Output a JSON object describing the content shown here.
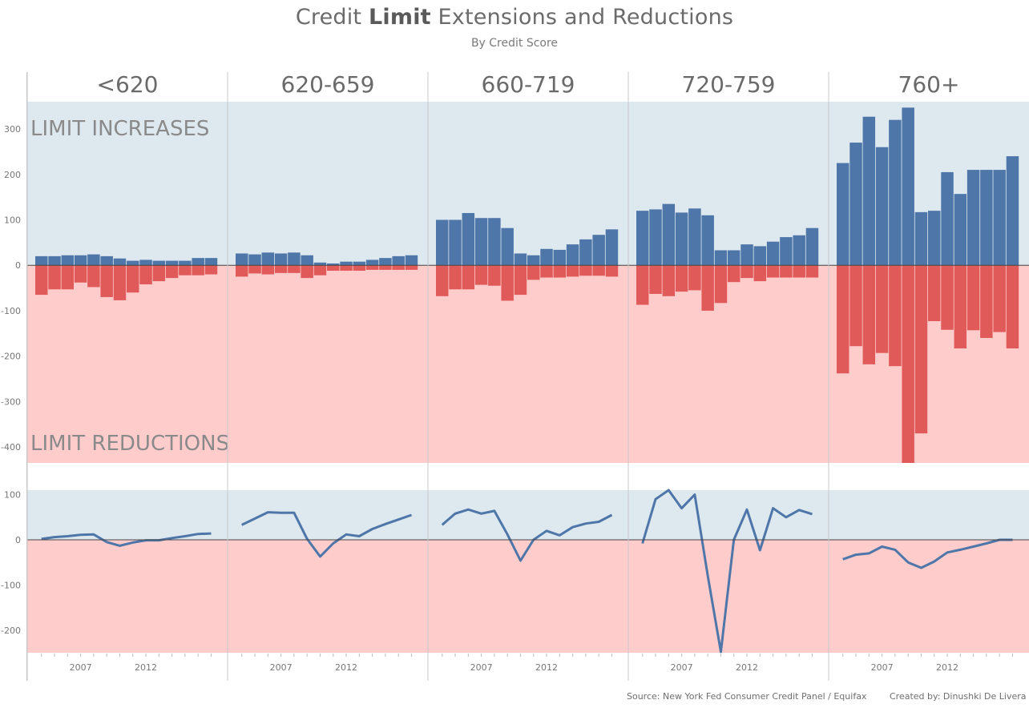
{
  "title": {
    "pre": "Credit ",
    "bold": "Limit",
    "post": " Extensions and Reductions"
  },
  "subtitle": "By Credit Score",
  "footer": {
    "source": "Source: New York Fed Consumer Credit Panel / Equifax",
    "credit": "Created by: Dinushki De Livera"
  },
  "colors": {
    "increase_bg": "#dde8ef",
    "reduction_bg": "#ffcccc",
    "increase_bar": "#4e76a8",
    "reduction_bar": "#e05a5a",
    "net_line": "#4e76a8",
    "text": "#777777"
  },
  "chart_data": [
    {
      "type": "bar",
      "title": "",
      "facet_header": [
        "<620",
        "620-659",
        "660-719",
        "720-759",
        "760+"
      ],
      "zone_labels": {
        "positive": "LIMIT INCREASES",
        "negative": "LIMIT REDUCTIONS"
      },
      "categories": [
        2004,
        2005,
        2006,
        2007,
        2008,
        2009,
        2010,
        2011,
        2012,
        2013,
        2014,
        2015,
        2016,
        2017
      ],
      "x_tick_labels": [
        "2007",
        "2012"
      ],
      "ylim": [
        -435,
        360
      ],
      "y_ticks": [
        300,
        200,
        100,
        0,
        -100,
        -200,
        -300,
        -400
      ],
      "series": [
        {
          "name": "LIMIT INCREASES",
          "facet": "<620",
          "values": [
            20,
            20,
            22,
            22,
            24,
            20,
            15,
            10,
            12,
            10,
            10,
            10,
            16,
            16
          ]
        },
        {
          "name": "LIMIT REDUCTIONS",
          "facet": "<620",
          "values": [
            -65,
            -53,
            -53,
            -38,
            -48,
            -70,
            -77,
            -60,
            -42,
            -35,
            -28,
            -22,
            -22,
            -20
          ]
        },
        {
          "name": "LIMIT INCREASES",
          "facet": "620-659",
          "values": [
            26,
            24,
            28,
            26,
            28,
            22,
            6,
            4,
            8,
            8,
            12,
            16,
            20,
            22
          ]
        },
        {
          "name": "LIMIT REDUCTIONS",
          "facet": "620-659",
          "values": [
            -25,
            -18,
            -20,
            -17,
            -17,
            -28,
            -22,
            -12,
            -12,
            -12,
            -10,
            -10,
            -10,
            -10
          ]
        },
        {
          "name": "LIMIT INCREASES",
          "facet": "660-719",
          "values": [
            100,
            100,
            115,
            104,
            104,
            82,
            26,
            22,
            36,
            34,
            46,
            57,
            67,
            79
          ]
        },
        {
          "name": "LIMIT REDUCTIONS",
          "facet": "660-719",
          "values": [
            -68,
            -53,
            -53,
            -43,
            -45,
            -78,
            -65,
            -32,
            -27,
            -27,
            -25,
            -23,
            -23,
            -25
          ]
        },
        {
          "name": "LIMIT INCREASES",
          "facet": "720-759",
          "values": [
            120,
            123,
            135,
            116,
            125,
            110,
            33,
            33,
            46,
            42,
            52,
            62,
            66,
            82
          ]
        },
        {
          "name": "LIMIT REDUCTIONS",
          "facet": "720-759",
          "values": [
            -87,
            -63,
            -68,
            -58,
            -55,
            -100,
            -83,
            -37,
            -28,
            -35,
            -27,
            -27,
            -27,
            -27
          ]
        },
        {
          "name": "LIMIT INCREASES",
          "facet": "760+",
          "values": [
            225,
            270,
            327,
            260,
            320,
            347,
            117,
            120,
            205,
            157,
            210,
            210,
            210,
            240
          ]
        },
        {
          "name": "LIMIT REDUCTIONS",
          "facet": "760+",
          "values": [
            -238,
            -178,
            -218,
            -193,
            -222,
            -435,
            -370,
            -123,
            -142,
            -183,
            -143,
            -160,
            -147,
            -183
          ]
        }
      ]
    },
    {
      "type": "line",
      "facet_header": [
        "<620",
        "620-659",
        "660-719",
        "720-759",
        "760+"
      ],
      "categories": [
        2004,
        2005,
        2006,
        2007,
        2008,
        2009,
        2010,
        2011,
        2012,
        2013,
        2014,
        2015,
        2016,
        2017
      ],
      "x_tick_labels": [
        "2007",
        "2012"
      ],
      "ylim": [
        -250,
        115
      ],
      "y_ticks": [
        100,
        0,
        -100,
        -200
      ],
      "series": [
        {
          "facet": "<620",
          "values": [
            2,
            6,
            8,
            11,
            12,
            -5,
            -13,
            -6,
            -1,
            -1,
            4,
            8,
            13,
            14
          ]
        },
        {
          "facet": "620-659",
          "values": [
            33,
            47,
            61,
            60,
            60,
            2,
            -37,
            -8,
            12,
            8,
            24,
            35,
            45,
            55
          ]
        },
        {
          "facet": "660-719",
          "values": [
            33,
            58,
            67,
            58,
            64,
            12,
            -46,
            0,
            20,
            10,
            28,
            36,
            40,
            55
          ]
        },
        {
          "facet": "720-759",
          "values": [
            -8,
            90,
            110,
            70,
            100,
            -80,
            -248,
            0,
            67,
            -23,
            70,
            50,
            66,
            57
          ]
        },
        {
          "facet": "760+",
          "values": [
            -43,
            -33,
            -30,
            -15,
            -22,
            -50,
            -62,
            -48,
            -28,
            -22,
            -15,
            -8,
            0,
            0
          ]
        }
      ]
    }
  ]
}
